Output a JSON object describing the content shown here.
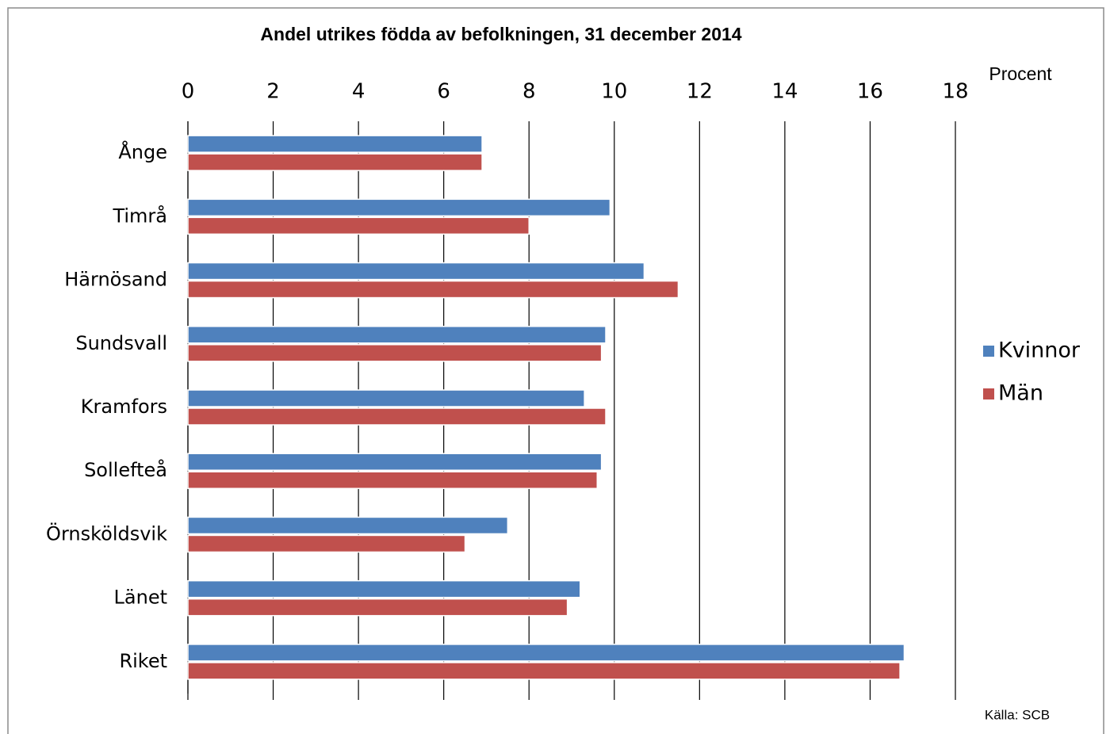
{
  "chart_data": {
    "type": "bar",
    "orientation": "horizontal",
    "title": "Andel utrikes födda av befolkningen,  31 december 2014",
    "x_axis_label": "Procent",
    "source": "Källa: SCB",
    "categories": [
      "Ånge",
      "Timrå",
      "Härnösand",
      "Sundsvall",
      "Kramfors",
      "Sollefteå",
      "Örnsköldsvik",
      "Länet",
      "Riket"
    ],
    "series": [
      {
        "name": "Kvinnor",
        "color": "#4f81bd",
        "values": [
          6.9,
          9.9,
          10.7,
          9.8,
          9.3,
          9.7,
          7.5,
          9.2,
          16.8
        ]
      },
      {
        "name": "Män",
        "color": "#c0504d",
        "values": [
          6.9,
          8.0,
          11.5,
          9.7,
          9.8,
          9.6,
          6.5,
          8.9,
          16.7
        ]
      }
    ],
    "xlim": [
      0,
      18
    ],
    "xticks": [
      0,
      2,
      4,
      6,
      8,
      10,
      12,
      14,
      16,
      18
    ],
    "grid": true,
    "legend": "right"
  }
}
